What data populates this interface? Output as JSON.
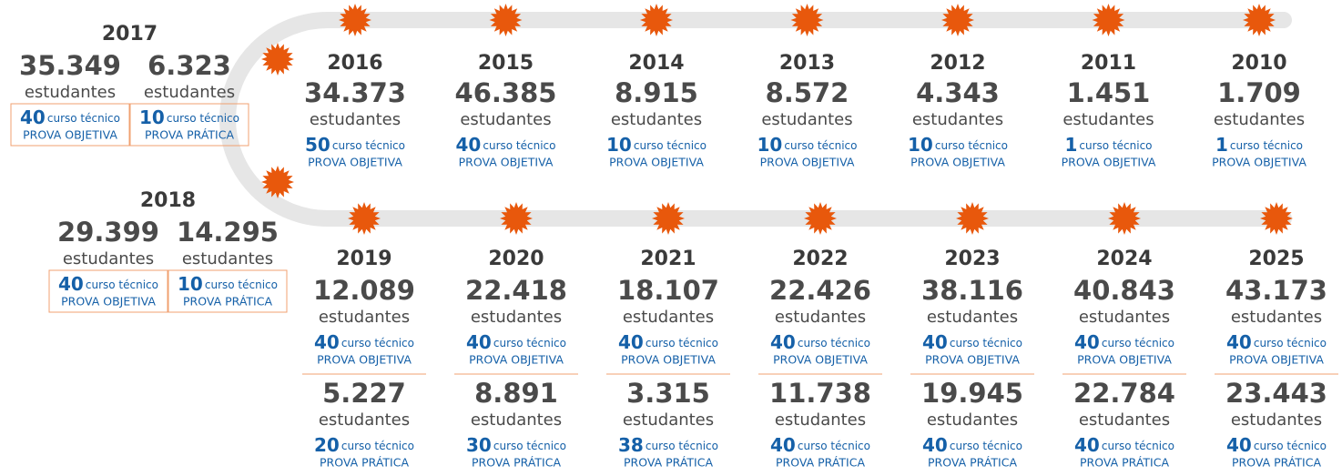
{
  "timeline": [
    {
      "year": "2017",
      "groups": [
        {
          "count": "35.349",
          "unit": "estudantes",
          "courses": "40",
          "course_label": "curso técnico",
          "exam": "PROVA OBJETIVA"
        },
        {
          "count": "6.323",
          "unit": "estudantes",
          "courses": "10",
          "course_label": "curso técnico",
          "exam": "PROVA PRÁTICA"
        }
      ]
    },
    {
      "year": "2018",
      "groups": [
        {
          "count": "29.399",
          "unit": "estudantes",
          "courses": "40",
          "course_label": "curso técnico",
          "exam": "PROVA OBJETIVA"
        },
        {
          "count": "14.295",
          "unit": "estudantes",
          "courses": "10",
          "course_label": "curso técnico",
          "exam": "PROVA PRÁTICA"
        }
      ]
    },
    {
      "year": "2016",
      "groups": [
        {
          "count": "34.373",
          "unit": "estudantes",
          "courses": "50",
          "course_label": "curso técnico",
          "exam": "PROVA OBJETIVA"
        }
      ]
    },
    {
      "year": "2015",
      "groups": [
        {
          "count": "46.385",
          "unit": "estudantes",
          "courses": "40",
          "course_label": "curso técnico",
          "exam": "PROVA OBJETIVA"
        }
      ]
    },
    {
      "year": "2014",
      "groups": [
        {
          "count": "8.915",
          "unit": "estudantes",
          "courses": "10",
          "course_label": "curso técnico",
          "exam": "PROVA OBJETIVA"
        }
      ]
    },
    {
      "year": "2013",
      "groups": [
        {
          "count": "8.572",
          "unit": "estudantes",
          "courses": "10",
          "course_label": "curso técnico",
          "exam": "PROVA OBJETIVA"
        }
      ]
    },
    {
      "year": "2012",
      "groups": [
        {
          "count": "4.343",
          "unit": "estudantes",
          "courses": "10",
          "course_label": "curso técnico",
          "exam": "PROVA OBJETIVA"
        }
      ]
    },
    {
      "year": "2011",
      "groups": [
        {
          "count": "1.451",
          "unit": "estudantes",
          "courses": "1",
          "course_label": "curso técnico",
          "exam": "PROVA OBJETIVA"
        }
      ]
    },
    {
      "year": "2010",
      "groups": [
        {
          "count": "1.709",
          "unit": "estudantes",
          "courses": "1",
          "course_label": "curso técnico",
          "exam": "PROVA OBJETIVA"
        }
      ]
    },
    {
      "year": "2019",
      "groups": [
        {
          "count": "12.089",
          "unit": "estudantes",
          "courses": "40",
          "course_label": "curso técnico",
          "exam": "PROVA OBJETIVA"
        },
        {
          "count": "5.227",
          "unit": "estudantes",
          "courses": "20",
          "course_label": "curso técnico",
          "exam": "PROVA PRÁTICA"
        }
      ]
    },
    {
      "year": "2020",
      "groups": [
        {
          "count": "22.418",
          "unit": "estudantes",
          "courses": "40",
          "course_label": "curso técnico",
          "exam": "PROVA OBJETIVA"
        },
        {
          "count": "8.891",
          "unit": "estudantes",
          "courses": "30",
          "course_label": "curso técnico",
          "exam": "PROVA PRÁTICA"
        }
      ]
    },
    {
      "year": "2021",
      "groups": [
        {
          "count": "18.107",
          "unit": "estudantes",
          "courses": "40",
          "course_label": "curso técnico",
          "exam": "PROVA OBJETIVA"
        },
        {
          "count": "3.315",
          "unit": "estudantes",
          "courses": "38",
          "course_label": "curso técnico",
          "exam": "PROVA PRÁTICA"
        }
      ]
    },
    {
      "year": "2022",
      "groups": [
        {
          "count": "22.426",
          "unit": "estudantes",
          "courses": "40",
          "course_label": "curso técnico",
          "exam": "PROVA OBJETIVA"
        },
        {
          "count": "11.738",
          "unit": "estudantes",
          "courses": "40",
          "course_label": "curso técnico",
          "exam": "PROVA PRÁTICA"
        }
      ]
    },
    {
      "year": "2023",
      "groups": [
        {
          "count": "38.116",
          "unit": "estudantes",
          "courses": "40",
          "course_label": "curso técnico",
          "exam": "PROVA OBJETIVA"
        },
        {
          "count": "19.945",
          "unit": "estudantes",
          "courses": "40",
          "course_label": "curso técnico",
          "exam": "PROVA PRÁTICA"
        }
      ]
    },
    {
      "year": "2024",
      "groups": [
        {
          "count": "40.843",
          "unit": "estudantes",
          "courses": "40",
          "course_label": "curso técnico",
          "exam": "PROVA OBJETIVA"
        },
        {
          "count": "22.784",
          "unit": "estudantes",
          "courses": "40",
          "course_label": "curso técnico",
          "exam": "PROVA PRÁTICA"
        }
      ]
    },
    {
      "year": "2025",
      "groups": [
        {
          "count": "43.173",
          "unit": "estudantes",
          "courses": "40",
          "course_label": "curso técnico",
          "exam": "PROVA OBJETIVA"
        },
        {
          "count": "23.443",
          "unit": "estudantes",
          "courses": "40",
          "course_label": "curso técnico",
          "exam": "PROVA PRÁTICA"
        }
      ]
    }
  ]
}
